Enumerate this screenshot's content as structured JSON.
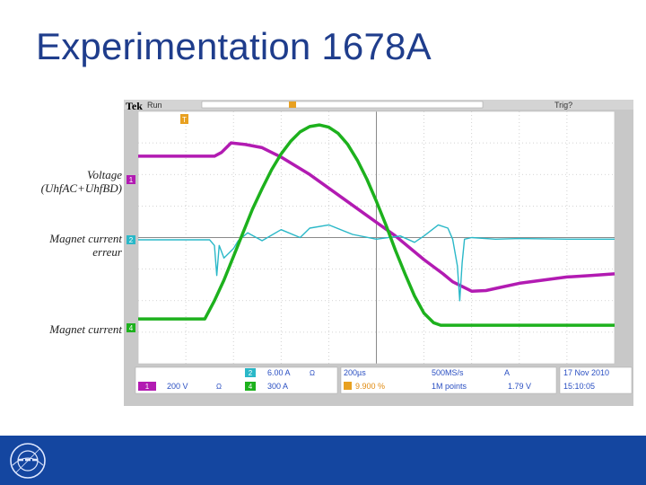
{
  "slide": {
    "title": "Experimentation 1678A"
  },
  "side_labels": {
    "voltage": [
      "Voltage",
      "(UhfAC+UhfBD)"
    ],
    "error": [
      "Magnet current",
      "erreur"
    ],
    "current": [
      "Magnet current"
    ]
  },
  "scope": {
    "top_bar": {
      "brand": "Tek",
      "state": "Run",
      "trigger": "Trig?"
    },
    "channel_markers": {
      "voltage": "1",
      "error": "2",
      "current": "4",
      "trigger": "T"
    },
    "readout": {
      "ch2_num": "2",
      "ch2_scale": "6.00 A",
      "ch2_sym": "Ω",
      "ch1_num": "1",
      "ch1_scale": "200 V",
      "ch1_sym": "Ω",
      "ch4_num": "4",
      "ch4_scale": "300 A",
      "ch4_sym": "Ω",
      "timebase": "200µs",
      "sample_rate": "500MS/s",
      "trig_level_a": "A",
      "trig_pos": "9.900 %",
      "record_length": "1M points",
      "trig_value": "1.79 V",
      "date": "17 Nov 2010",
      "time": "15:10:05"
    },
    "colors": {
      "voltage": "#b21bb2",
      "error": "#2ab8c8",
      "current": "#1db11d",
      "screen": "#ffffff",
      "grid": "#c6c6c6",
      "bezel": "#c8c8c8",
      "readout_text": "#2a4fc2"
    }
  },
  "chart_data": {
    "type": "line",
    "title": "",
    "xlabel": "",
    "ylabel": "",
    "xlim": [
      0,
      10
    ],
    "ylim": [
      -4,
      4
    ],
    "grid": true,
    "series": [
      {
        "key": "voltage",
        "color": "#b21bb2",
        "x": [
          0,
          1.6,
          1.75,
          1.95,
          2.25,
          2.6,
          3.0,
          3.6,
          4.2,
          4.8,
          5.4,
          6.0,
          6.4,
          6.6,
          6.8,
          7.0,
          7.3,
          7.6,
          8.0,
          8.5,
          9.0,
          9.5,
          10
        ],
        "y": [
          2.58,
          2.58,
          2.7,
          3.0,
          2.95,
          2.85,
          2.55,
          2.0,
          1.35,
          0.7,
          0.05,
          -0.7,
          -1.15,
          -1.4,
          -1.55,
          -1.7,
          -1.68,
          -1.58,
          -1.45,
          -1.35,
          -1.25,
          -1.2,
          -1.15
        ]
      },
      {
        "key": "error",
        "color": "#2ab8c8",
        "x": [
          0,
          1.5,
          1.6,
          1.65,
          1.7,
          1.8,
          2.0,
          2.1,
          2.3,
          2.6,
          3.0,
          3.4,
          3.6,
          4.0,
          4.5,
          5.0,
          5.5,
          5.8,
          6.0,
          6.3,
          6.5,
          6.6,
          6.7,
          6.75,
          6.8,
          6.85,
          7.0,
          7.5,
          8.0,
          9.0,
          10
        ],
        "y": [
          -0.07,
          -0.07,
          -0.25,
          -1.2,
          -0.25,
          -0.65,
          -0.35,
          -0.1,
          0.15,
          -0.1,
          0.25,
          0.0,
          0.3,
          0.4,
          0.1,
          -0.05,
          0.05,
          -0.15,
          0.05,
          0.4,
          0.3,
          -0.05,
          -0.9,
          -2.0,
          -0.8,
          -0.05,
          0.0,
          -0.05,
          -0.03,
          -0.05,
          -0.05
        ]
      },
      {
        "key": "current",
        "color": "#1db11d",
        "x": [
          0,
          1.4,
          1.6,
          1.8,
          2.0,
          2.2,
          2.4,
          2.6,
          2.8,
          3.0,
          3.2,
          3.4,
          3.6,
          3.8,
          4.0,
          4.2,
          4.4,
          4.6,
          4.8,
          5.0,
          5.2,
          5.4,
          5.6,
          5.8,
          6.0,
          6.2,
          6.35,
          6.6,
          7.0,
          8.0,
          9.0,
          10
        ],
        "y": [
          -2.58,
          -2.58,
          -2.0,
          -1.35,
          -0.6,
          0.15,
          0.9,
          1.55,
          2.15,
          2.65,
          3.05,
          3.35,
          3.52,
          3.57,
          3.5,
          3.3,
          2.95,
          2.45,
          1.85,
          1.15,
          0.4,
          -0.4,
          -1.15,
          -1.85,
          -2.4,
          -2.7,
          -2.78,
          -2.78,
          -2.78,
          -2.78,
          -2.78,
          -2.78
        ]
      }
    ]
  }
}
